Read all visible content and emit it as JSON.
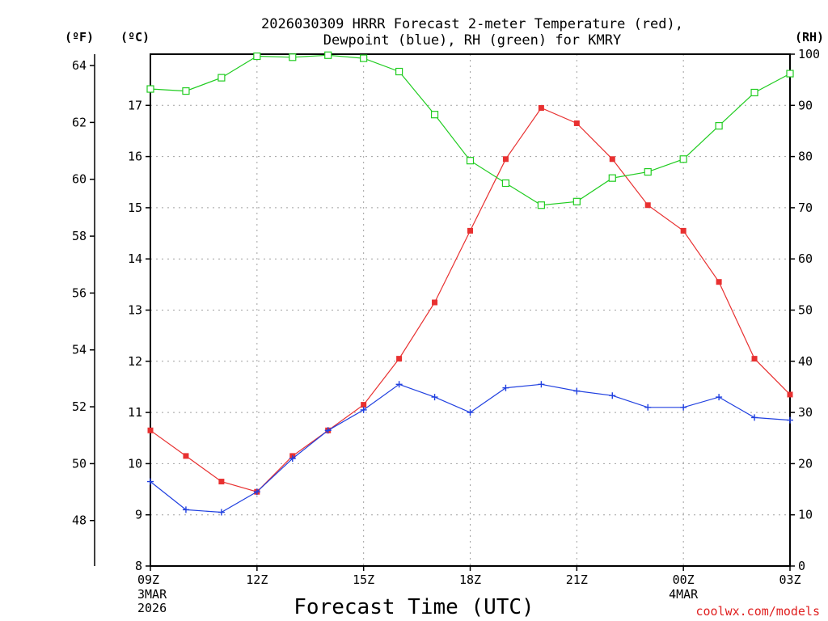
{
  "chart_data": {
    "type": "line",
    "title_line1": "2026030309 HRRR Forecast 2-meter Temperature (red),",
    "title_line2": "Dewpoint (blue), RH (green) for KMRY",
    "xlabel": "Forecast Time (UTC)",
    "credit": "coolwx.com/models",
    "axis_units": {
      "f": "(ºF)",
      "c": "(ºC)",
      "rh": "(RH)"
    },
    "x": [
      0,
      1,
      2,
      3,
      4,
      5,
      6,
      7,
      8,
      9,
      10,
      11,
      12,
      13,
      14,
      15,
      16,
      17,
      18
    ],
    "xlim": [
      0,
      18
    ],
    "x_ticks": [
      {
        "x": 0,
        "label": "09Z",
        "date1": "3MAR",
        "date2": "2026"
      },
      {
        "x": 3,
        "label": "12Z",
        "date1": "",
        "date2": ""
      },
      {
        "x": 6,
        "label": "15Z",
        "date1": "",
        "date2": ""
      },
      {
        "x": 9,
        "label": "18Z",
        "date1": "",
        "date2": ""
      },
      {
        "x": 12,
        "label": "21Z",
        "date1": "",
        "date2": ""
      },
      {
        "x": 15,
        "label": "00Z",
        "date1": "4MAR",
        "date2": ""
      },
      {
        "x": 18,
        "label": "03Z",
        "date1": "",
        "date2": ""
      }
    ],
    "celsius_axis": {
      "ylim": [
        8,
        18
      ],
      "ticks": [
        8,
        9,
        10,
        11,
        12,
        13,
        14,
        15,
        16,
        17
      ]
    },
    "fahrenheit_axis": {
      "ticks": [
        48,
        50,
        52,
        54,
        56,
        58,
        60,
        62,
        64
      ]
    },
    "rh_axis": {
      "ylim": [
        0,
        100
      ],
      "ticks": [
        0,
        10,
        20,
        30,
        40,
        50,
        60,
        70,
        80,
        90,
        100
      ]
    },
    "series": [
      {
        "name": "Temperature",
        "axis": "celsius",
        "color": "#e83030",
        "marker": "square-filled",
        "values": [
          10.65,
          10.15,
          9.65,
          9.45,
          10.15,
          10.65,
          11.15,
          12.05,
          13.15,
          14.55,
          15.95,
          16.95,
          16.65,
          15.95,
          15.05,
          14.55,
          13.55,
          12.05,
          11.35
        ]
      },
      {
        "name": "Dewpoint",
        "axis": "celsius",
        "color": "#2040e0",
        "marker": "plus",
        "values": [
          9.65,
          9.1,
          9.05,
          9.45,
          10.1,
          10.65,
          11.05,
          11.55,
          11.3,
          11.0,
          11.48,
          11.55,
          11.42,
          11.33,
          11.1,
          11.1,
          11.3,
          10.9,
          10.85
        ]
      },
      {
        "name": "RH",
        "axis": "rh",
        "color": "#20cc20",
        "marker": "square-open",
        "values": [
          93.2,
          92.8,
          95.4,
          99.6,
          99.4,
          99.8,
          99.2,
          96.6,
          88.2,
          79.2,
          74.8,
          70.5,
          71.2,
          75.8,
          77.0,
          79.5,
          86.0,
          92.5,
          96.2
        ]
      }
    ]
  }
}
